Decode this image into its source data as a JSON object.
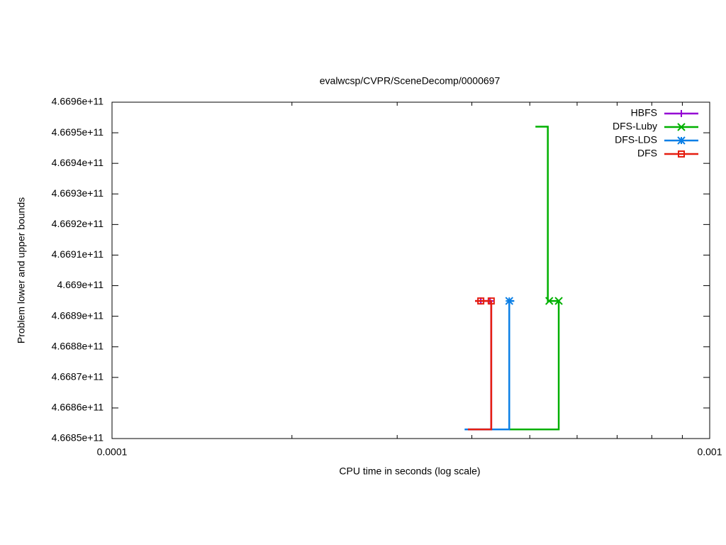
{
  "chart_data": {
    "type": "line",
    "title": "evalwcsp/CVPR/SceneDecomp/0000697",
    "xlabel": "CPU time in seconds (log scale)",
    "ylabel": "Problem lower and upper bounds",
    "xscale": "log",
    "xlim": [
      0.0001,
      0.001
    ],
    "xticks": [
      0.0001,
      0.001
    ],
    "xminorticks": [
      0.0002,
      0.0003,
      0.0004,
      0.0005,
      0.0006,
      0.0007,
      0.0008,
      0.0009
    ],
    "ylim": [
      466850000000,
      466960000000
    ],
    "yticks": [
      {
        "value": 466850000000,
        "label": "4.6685e+11"
      },
      {
        "value": 466860000000,
        "label": "4.6686e+11"
      },
      {
        "value": 466870000000,
        "label": "4.6687e+11"
      },
      {
        "value": 466880000000,
        "label": "4.6688e+11"
      },
      {
        "value": 466890000000,
        "label": "4.6689e+11"
      },
      {
        "value": 466900000000,
        "label": "4.669e+11"
      },
      {
        "value": 466910000000,
        "label": "4.6691e+11"
      },
      {
        "value": 466920000000,
        "label": "4.6692e+11"
      },
      {
        "value": 466930000000,
        "label": "4.6693e+11"
      },
      {
        "value": 466940000000,
        "label": "4.6694e+11"
      },
      {
        "value": 466950000000,
        "label": "4.6695e+11"
      },
      {
        "value": 466960000000,
        "label": "4.6696e+11"
      }
    ],
    "legend": "top-right",
    "series": [
      {
        "name": "HBFS",
        "color": "#9400d3",
        "marker": "plus",
        "x": [
          0.000405,
          0.000431,
          0.000431,
          0.000394
        ],
        "values": [
          466895000000,
          466895000000,
          466853000000,
          466853000000
        ],
        "point_x": [
          0.000414,
          0.000429
        ],
        "point_values": [
          466895000000,
          466895000000
        ]
      },
      {
        "name": "DFS-Luby",
        "color": "#00b000",
        "marker": "cross",
        "x": [
          0.000511,
          0.000536,
          0.000536,
          0.000559,
          0.000559,
          0.000462
        ],
        "values": [
          466952000000,
          466952000000,
          466895000000,
          466895000000,
          466853000000,
          466853000000
        ],
        "point_x": [
          0.000539,
          0.000559
        ],
        "point_values": [
          466895000000,
          466895000000
        ]
      },
      {
        "name": "DFS-LDS",
        "color": "#0a7fe6",
        "marker": "star",
        "x": [
          0.000471,
          0.000462,
          0.000462,
          0.000389
        ],
        "values": [
          466895000000,
          466895000000,
          466853000000,
          466853000000
        ],
        "point_x": [
          0.000462
        ],
        "point_values": [
          466895000000
        ]
      },
      {
        "name": "DFS",
        "color": "#e51e10",
        "marker": "square",
        "x": [
          0.000405,
          0.000431,
          0.000431,
          0.000394
        ],
        "values": [
          466895000000,
          466895000000,
          466853000000,
          466853000000
        ],
        "point_x": [
          0.000414,
          0.000431
        ],
        "point_values": [
          466895000000,
          466895000000
        ]
      }
    ]
  }
}
